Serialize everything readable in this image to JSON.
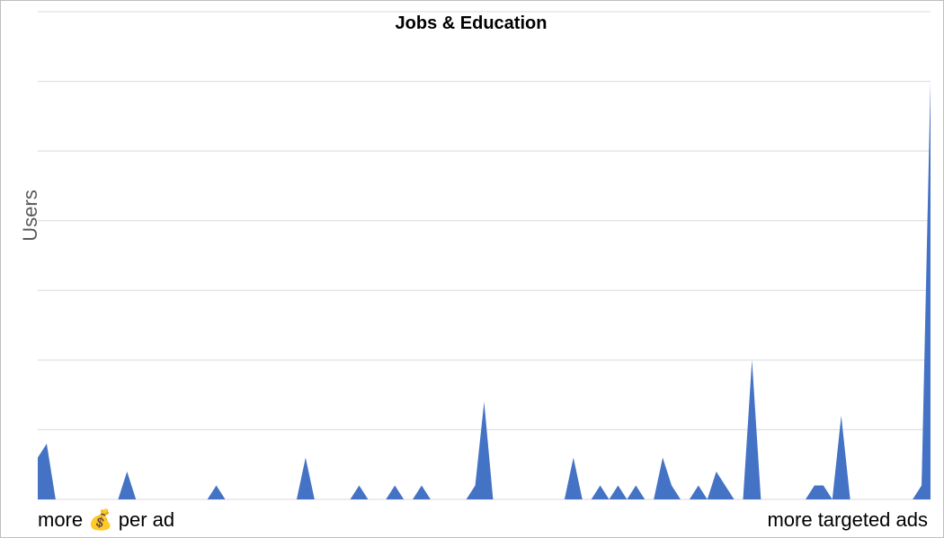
{
  "chart_data": {
    "type": "area",
    "title": "Jobs & Education",
    "xlabel": "",
    "ylabel": "Users",
    "ylim": [
      0,
      7
    ],
    "grid": true,
    "legend": "none",
    "color": "#4472c4",
    "x": [
      0,
      1,
      2,
      3,
      4,
      5,
      6,
      7,
      8,
      9,
      10,
      11,
      12,
      13,
      14,
      15,
      16,
      17,
      18,
      19,
      20,
      21,
      22,
      23,
      24,
      25,
      26,
      27,
      28,
      29,
      30,
      31,
      32,
      33,
      34,
      35,
      36,
      37,
      38,
      39,
      40,
      41,
      42,
      43,
      44,
      45,
      46,
      47,
      48,
      49,
      50,
      51,
      52,
      53,
      54,
      55,
      56,
      57,
      58,
      59,
      60,
      61,
      62,
      63,
      64,
      65,
      66,
      67,
      68,
      69,
      70,
      71,
      72,
      73,
      74,
      75,
      76,
      77,
      78,
      79,
      80,
      81,
      82,
      83,
      84,
      85,
      86,
      87,
      88,
      89,
      90,
      91,
      92,
      93,
      94,
      95,
      96,
      97,
      98,
      99,
      100
    ],
    "values": [
      0.6,
      0.8,
      0,
      0,
      0,
      0,
      0,
      0,
      0,
      0,
      0.4,
      0,
      0,
      0,
      0,
      0,
      0,
      0,
      0,
      0,
      0.2,
      0,
      0,
      0,
      0,
      0,
      0,
      0,
      0,
      0,
      0.6,
      0,
      0,
      0,
      0,
      0,
      0.2,
      0,
      0,
      0,
      0.2,
      0,
      0,
      0.2,
      0,
      0,
      0,
      0,
      0,
      0.2,
      1.4,
      0,
      0,
      0,
      0,
      0,
      0,
      0,
      0,
      0,
      0.6,
      0,
      0,
      0.2,
      0,
      0.2,
      0,
      0.2,
      0,
      0,
      0.6,
      0.2,
      0,
      0,
      0.2,
      0,
      0.4,
      0.2,
      0,
      0,
      2.0,
      0,
      0,
      0,
      0,
      0,
      0,
      0.2,
      0.2,
      0,
      1.2,
      0,
      0,
      0,
      0,
      0,
      0,
      0,
      0,
      0.2,
      6.0
    ],
    "annotations": {
      "left": "more 💰 per ad",
      "right": "more targeted ads"
    }
  }
}
